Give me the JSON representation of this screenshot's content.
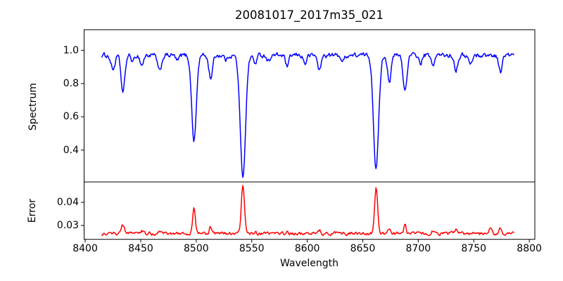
{
  "figure": {
    "background": "#ffffff",
    "text_color": "#000000",
    "axes_color": "#000000"
  },
  "chart_data": {
    "type": "line",
    "title": "20081017_2017m35_021",
    "xlabel": "Wavelength",
    "grid": false,
    "legend": "none",
    "xlim": [
      8399,
      8805
    ],
    "xticks": [
      8400,
      8450,
      8500,
      8550,
      8600,
      8650,
      8700,
      8750,
      8800
    ],
    "xtick_labels": [
      "8400",
      "8450",
      "8500",
      "8550",
      "8600",
      "8650",
      "8700",
      "8750",
      "8800"
    ],
    "subplots": [
      {
        "name": "spectrum",
        "ylabel": "Spectrum",
        "line_color": "#0000ff",
        "ylim": [
          0.208,
          1.124
        ],
        "yticks": [
          0.4,
          0.6,
          0.8,
          1.0
        ],
        "ytick_labels": [
          "0.4",
          "0.6",
          "0.8",
          "1.0"
        ],
        "x_start": 8415,
        "x_end": 8786,
        "n_points": 530,
        "baseline": 0.97,
        "noise_amp": 0.012,
        "features": [
          {
            "center": 8425,
            "amp": -0.085,
            "sigma": 1.8
          },
          {
            "center": 8434,
            "amp": -0.225,
            "sigma": 1.7
          },
          {
            "center": 8443,
            "amp": -0.04,
            "sigma": 1.4
          },
          {
            "center": 8451,
            "amp": -0.06,
            "sigma": 1.5
          },
          {
            "center": 8467,
            "amp": -0.1,
            "sigma": 1.7
          },
          {
            "center": 8483,
            "amp": -0.035,
            "sigma": 1.4
          },
          {
            "center": 8498,
            "amp": -0.515,
            "sigma": 2.1
          },
          {
            "center": 8513,
            "amp": -0.135,
            "sigma": 1.7
          },
          {
            "center": 8527,
            "amp": -0.03,
            "sigma": 1.3
          },
          {
            "center": 8542,
            "amp": -0.73,
            "sigma": 2.4
          },
          {
            "center": 8553,
            "amp": -0.05,
            "sigma": 1.4
          },
          {
            "center": 8565,
            "amp": -0.035,
            "sigma": 1.3
          },
          {
            "center": 8582,
            "amp": -0.07,
            "sigma": 1.5
          },
          {
            "center": 8598,
            "amp": -0.05,
            "sigma": 1.4
          },
          {
            "center": 8611,
            "amp": -0.09,
            "sigma": 1.5
          },
          {
            "center": 8632,
            "amp": -0.04,
            "sigma": 1.3
          },
          {
            "center": 8662,
            "amp": -0.685,
            "sigma": 2.3
          },
          {
            "center": 8674,
            "amp": -0.155,
            "sigma": 1.6
          },
          {
            "center": 8688,
            "amp": -0.215,
            "sigma": 1.7
          },
          {
            "center": 8702,
            "amp": -0.05,
            "sigma": 1.4
          },
          {
            "center": 8713,
            "amp": -0.065,
            "sigma": 1.4
          },
          {
            "center": 8734,
            "amp": -0.085,
            "sigma": 1.5
          },
          {
            "center": 8747,
            "amp": -0.06,
            "sigma": 1.4
          },
          {
            "center": 8774,
            "amp": -0.1,
            "sigma": 1.5
          }
        ]
      },
      {
        "name": "error",
        "ylabel": "Error",
        "line_color": "#ff0000",
        "ylim": [
          0.024,
          0.0488
        ],
        "yticks": [
          0.03,
          0.04
        ],
        "ytick_labels": [
          "0.03",
          "0.04"
        ],
        "x_start": 8415,
        "x_end": 8786,
        "n_points": 530,
        "baseline": 0.0265,
        "noise_amp": 0.0006,
        "features": [
          {
            "center": 8434,
            "amp": 0.0036,
            "sigma": 1.4
          },
          {
            "center": 8451,
            "amp": 0.001,
            "sigma": 1.2
          },
          {
            "center": 8468,
            "amp": 0.0013,
            "sigma": 1.3
          },
          {
            "center": 8498,
            "amp": 0.0108,
            "sigma": 1.2
          },
          {
            "center": 8513,
            "amp": 0.0028,
            "sigma": 1.2
          },
          {
            "center": 8542,
            "amp": 0.0207,
            "sigma": 1.4
          },
          {
            "center": 8553,
            "amp": 0.001,
            "sigma": 1.1
          },
          {
            "center": 8582,
            "amp": 0.0008,
            "sigma": 1.1
          },
          {
            "center": 8611,
            "amp": 0.0016,
            "sigma": 1.0
          },
          {
            "center": 8662,
            "amp": 0.0198,
            "sigma": 1.4
          },
          {
            "center": 8674,
            "amp": 0.0024,
            "sigma": 1.1
          },
          {
            "center": 8688,
            "amp": 0.0046,
            "sigma": 0.9
          },
          {
            "center": 8713,
            "amp": 0.001,
            "sigma": 1.0
          },
          {
            "center": 8734,
            "amp": 0.0013,
            "sigma": 1.0
          },
          {
            "center": 8765,
            "amp": 0.0026,
            "sigma": 1.0
          },
          {
            "center": 8774,
            "amp": 0.0024,
            "sigma": 1.0
          }
        ]
      }
    ]
  }
}
